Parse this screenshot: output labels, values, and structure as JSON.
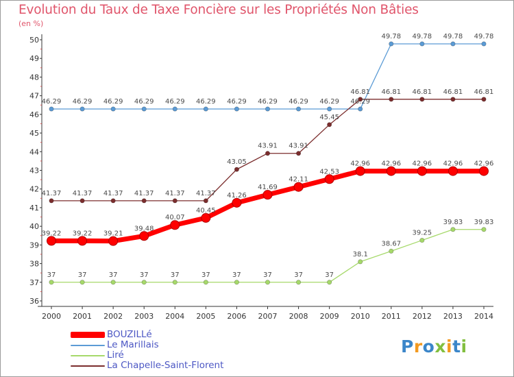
{
  "title": "Evolution du Taux de Taxe Foncière sur les Propriétés Non Bâties",
  "subtitle": "(en %)",
  "logo": {
    "letters": [
      "P",
      "r",
      "o",
      "x",
      "i",
      "t",
      "i"
    ],
    "colors": [
      "#3b86c9",
      "#f39a21",
      "#3b86c9",
      "#82bf3f",
      "#f39a21",
      "#3b86c9",
      "#82bf3f"
    ]
  },
  "chart_data": {
    "type": "line",
    "x": [
      2000,
      2001,
      2002,
      2003,
      2004,
      2005,
      2006,
      2007,
      2008,
      2009,
      2010,
      2011,
      2012,
      2013,
      2014
    ],
    "ylim": [
      36,
      50
    ],
    "yticks": [
      36,
      37,
      38,
      39,
      40,
      41,
      42,
      43,
      44,
      45,
      46,
      47,
      48,
      49,
      50
    ],
    "grid": false,
    "legend_position": "bottom-left",
    "series": [
      {
        "name": "BOUZILLé",
        "color": "#ff0000",
        "emphasis": true,
        "values": [
          39.22,
          39.22,
          39.21,
          39.48,
          40.07,
          40.45,
          41.26,
          41.69,
          42.11,
          42.53,
          42.96,
          42.96,
          42.96,
          42.96,
          42.96
        ]
      },
      {
        "name": "Le Marillais",
        "color": "#5b9bd5",
        "values": [
          46.29,
          46.29,
          46.29,
          46.29,
          46.29,
          46.29,
          46.29,
          46.29,
          46.29,
          46.29,
          46.29,
          49.78,
          49.78,
          49.78,
          49.78
        ]
      },
      {
        "name": "Liré",
        "color": "#a6d96a",
        "values": [
          37,
          37,
          37,
          37,
          37,
          37,
          37,
          37,
          37,
          37,
          38.1,
          38.67,
          39.25,
          39.83,
          39.83
        ]
      },
      {
        "name": "La Chapelle-Saint-Florent",
        "color": "#7b2d2d",
        "values": [
          41.37,
          41.37,
          41.37,
          41.37,
          41.37,
          41.37,
          43.05,
          43.91,
          43.91,
          45.45,
          46.81,
          46.81,
          46.81,
          46.81,
          46.81
        ]
      }
    ]
  }
}
